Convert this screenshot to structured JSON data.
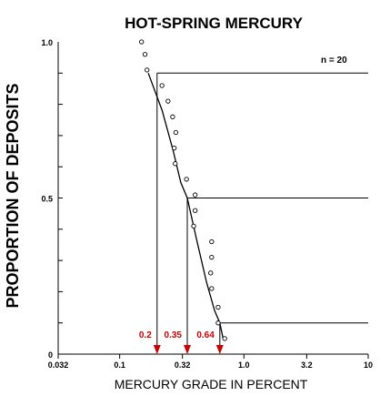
{
  "chart_data": {
    "type": "scatter",
    "title": "HOT-SPRING MERCURY",
    "xlabel": "MERCURY GRADE IN PERCENT",
    "ylabel": "PROPORTION OF DEPOSITS",
    "x_scale": "log",
    "xlim": [
      0.032,
      10
    ],
    "ylim": [
      0,
      1.0
    ],
    "x_ticks": [
      0.032,
      0.1,
      0.32,
      1.0,
      3.2,
      10
    ],
    "x_tick_labels": [
      "0.032",
      "0.1",
      "0.32",
      "1.0",
      "3.2",
      "10"
    ],
    "y_ticks": [
      0,
      0.5,
      1.0
    ],
    "y_tick_labels": [
      "0",
      "0.5",
      "1.0"
    ],
    "grid": false,
    "annotation_n": "n = 20",
    "series": [
      {
        "kind": "points",
        "marker": "open-circle",
        "points": [
          {
            "x": 0.15,
            "y": 1.0
          },
          {
            "x": 0.16,
            "y": 0.96
          },
          {
            "x": 0.166,
            "y": 0.91
          },
          {
            "x": 0.219,
            "y": 0.86
          },
          {
            "x": 0.245,
            "y": 0.81
          },
          {
            "x": 0.267,
            "y": 0.76
          },
          {
            "x": 0.283,
            "y": 0.71
          },
          {
            "x": 0.275,
            "y": 0.66
          },
          {
            "x": 0.28,
            "y": 0.61
          },
          {
            "x": 0.345,
            "y": 0.56
          },
          {
            "x": 0.405,
            "y": 0.51
          },
          {
            "x": 0.405,
            "y": 0.46
          },
          {
            "x": 0.394,
            "y": 0.41
          },
          {
            "x": 0.55,
            "y": 0.36
          },
          {
            "x": 0.55,
            "y": 0.31
          },
          {
            "x": 0.54,
            "y": 0.26
          },
          {
            "x": 0.55,
            "y": 0.21
          },
          {
            "x": 0.62,
            "y": 0.15
          },
          {
            "x": 0.62,
            "y": 0.1
          },
          {
            "x": 0.7,
            "y": 0.05
          }
        ]
      },
      {
        "kind": "fitted-curve",
        "points": [
          {
            "x": 0.17,
            "y": 0.9
          },
          {
            "x": 0.22,
            "y": 0.78
          },
          {
            "x": 0.27,
            "y": 0.65
          },
          {
            "x": 0.31,
            "y": 0.55
          },
          {
            "x": 0.35,
            "y": 0.5
          },
          {
            "x": 0.42,
            "y": 0.36
          },
          {
            "x": 0.5,
            "y": 0.23
          },
          {
            "x": 0.58,
            "y": 0.14
          },
          {
            "x": 0.64,
            "y": 0.1
          },
          {
            "x": 0.68,
            "y": 0.05
          }
        ]
      }
    ],
    "percentile_markers": [
      {
        "label": "0.2",
        "x": 0.2,
        "y": 0.9
      },
      {
        "label": "0.35",
        "x": 0.35,
        "y": 0.5
      },
      {
        "label": "0.64",
        "x": 0.64,
        "y": 0.1
      }
    ],
    "colors": {
      "axes": "#000000",
      "curve": "#000000",
      "markers": "#000000",
      "percentile_labels": "#cc0000",
      "arrows": "#cc0000"
    }
  }
}
